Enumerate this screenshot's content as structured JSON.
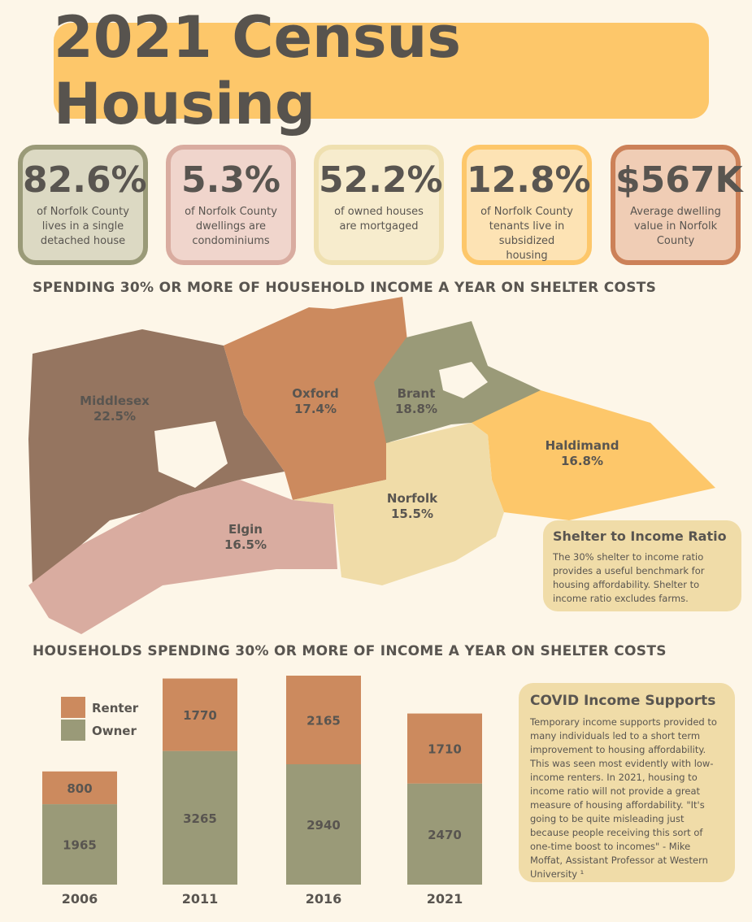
{
  "title": "2021 Census Housing",
  "stats": [
    {
      "value": "82.6%",
      "text": "of Norfolk County lives in a single detached house"
    },
    {
      "value": "5.3%",
      "text": "of Norfolk County dwellings are condominiums"
    },
    {
      "value": "52.2%",
      "text": "of owned houses are mortgaged"
    },
    {
      "value": "12.8%",
      "text": "of Norfolk County tenants live in subsidized housing"
    },
    {
      "value": "$567K",
      "text": "Average dwelling value in Norfolk County"
    }
  ],
  "map": {
    "title": "SPENDING 30% OR MORE OF HOUSEHOLD INCOME A YEAR ON SHELTER COSTS",
    "regions": [
      {
        "name": "Middlesex",
        "value": "22.5%"
      },
      {
        "name": "Oxford",
        "value": "17.4%"
      },
      {
        "name": "Brant",
        "value": "18.8%"
      },
      {
        "name": "Haldimand",
        "value": "16.8%"
      },
      {
        "name": "Norfolk",
        "value": "15.5%"
      },
      {
        "name": "Elgin",
        "value": "16.5%"
      }
    ]
  },
  "ratio_note": {
    "title": "Shelter to Income Ratio",
    "text": "The 30% shelter to income ratio provides a useful benchmark for housing affordability. Shelter to income ratio excludes farms."
  },
  "chart_data": {
    "type": "stacked-bar",
    "title": "HOUSEHOLDS SPENDING 30% OR MORE OF INCOME A YEAR ON SHELTER COSTS",
    "categories": [
      "2006",
      "2011",
      "2016",
      "2021"
    ],
    "series": [
      {
        "name": "Owner",
        "color": "#9a9a78",
        "values": [
          1965,
          3265,
          2940,
          2470
        ]
      },
      {
        "name": "Renter",
        "color": "#cc8a5e",
        "values": [
          800,
          1770,
          2165,
          1710
        ]
      }
    ]
  },
  "covid_note": {
    "title": "COVID Income Supports",
    "text": "Temporary income supports provided to many individuals led to a short term improvement to housing affordability. This was seen most evidently with low-income renters. In 2021, housing to income ratio will not provide a great measure of housing affordability. \"It's going to be quite misleading just because people receiving this sort of one-time boost to incomes\" - Mike Moffat, Assistant Professor at Western University ¹"
  }
}
